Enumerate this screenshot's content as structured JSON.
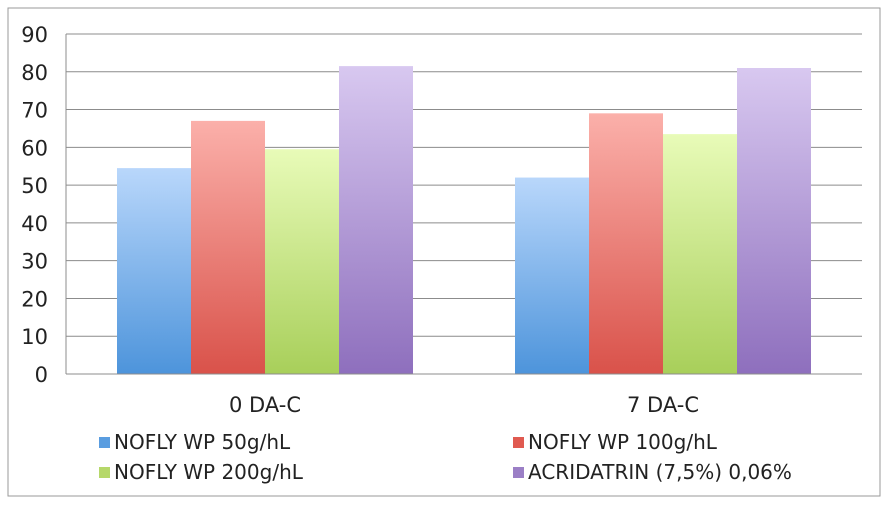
{
  "chart_data": {
    "type": "bar",
    "categories": [
      "0 DA-C",
      "7 DA-C"
    ],
    "series": [
      {
        "name": "NOFLY WP 50g/hL",
        "values": [
          54.5,
          52
        ],
        "color": "#5a9de0"
      },
      {
        "name": "NOFLY WP 100g/hL",
        "values": [
          67,
          69
        ],
        "color": "#e05a50"
      },
      {
        "name": "NOFLY WP 200g/hL",
        "values": [
          59.5,
          63.5
        ],
        "color": "#b6d86a"
      },
      {
        "name": "ACRIDATRIN (7,5%) 0,06%",
        "values": [
          81.5,
          81
        ],
        "color": "#9b7fc6"
      }
    ],
    "yticks": [
      "0",
      "10",
      "20",
      "30",
      "40",
      "50",
      "60",
      "70",
      "80",
      "90"
    ],
    "ylim": [
      0,
      90
    ],
    "grid": true,
    "legend_position": "bottom"
  }
}
